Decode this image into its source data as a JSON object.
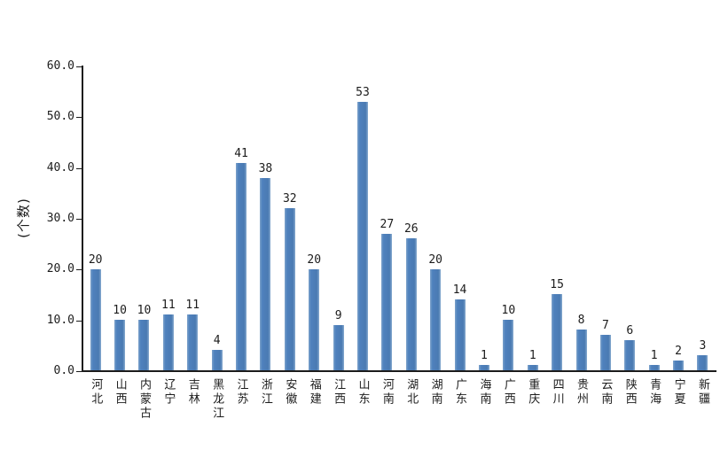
{
  "chart": {
    "background": "#ffffff",
    "bar_color": "#4f81bd",
    "axis_color": "#1c1c1c"
  },
  "chart_data": {
    "type": "bar",
    "title": "",
    "xlabel": "",
    "ylabel": "(个数)",
    "ylim": [
      0,
      60
    ],
    "ytick_labels_top_to_bottom": [
      "60.0",
      "50.0",
      "40.0",
      "30.0",
      "20.0",
      "10.0",
      "0.0"
    ],
    "grid": false,
    "legend": false,
    "value_labels": true,
    "categories": [
      "河北",
      "山西",
      "内蒙古",
      "辽宁",
      "吉林",
      "黑龙江",
      "江苏",
      "浙江",
      "安徽",
      "福建",
      "江西",
      "山东",
      "河南",
      "湖北",
      "湖南",
      "广东",
      "海南",
      "广西",
      "重庆",
      "四川",
      "贵州",
      "云南",
      "陕西",
      "青海",
      "宁夏",
      "新疆"
    ],
    "values": [
      20,
      10,
      10,
      11,
      11,
      4,
      41,
      38,
      32,
      20,
      9,
      53,
      27,
      26,
      20,
      14,
      1,
      10,
      1,
      15,
      8,
      7,
      6,
      1,
      2,
      3
    ]
  }
}
